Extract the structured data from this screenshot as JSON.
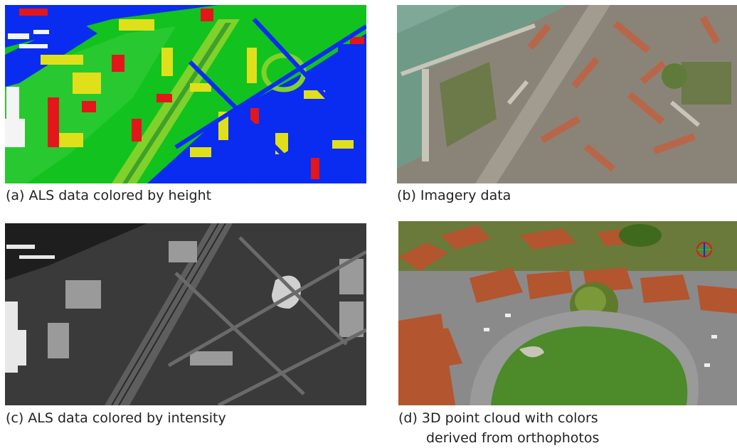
{
  "panels": {
    "a": {
      "caption": "(a) ALS data colored by height",
      "palette": [
        "#0a2cf0",
        "#12c21e",
        "#7fd22a",
        "#e0e01a",
        "#e6a21a",
        "#e3161a"
      ]
    },
    "b": {
      "caption": "(b) Imagery data",
      "palette": [
        "#6f9a88",
        "#8a8478",
        "#b8664a",
        "#6b7a48",
        "#c9c4b8"
      ]
    },
    "c": {
      "caption": "(c) ALS data colored by intensity",
      "palette": [
        "#2a2a2a",
        "#5e5e5e",
        "#9a9a9a",
        "#e8e8e8"
      ]
    },
    "d": {
      "caption_line1": "(d) 3D point cloud with colors",
      "caption_line2": "derived from orthophotos",
      "palette": [
        "#3f6a1e",
        "#4c8a2a",
        "#b3552e",
        "#8a8a8a",
        "#6a7a3a"
      ]
    }
  }
}
